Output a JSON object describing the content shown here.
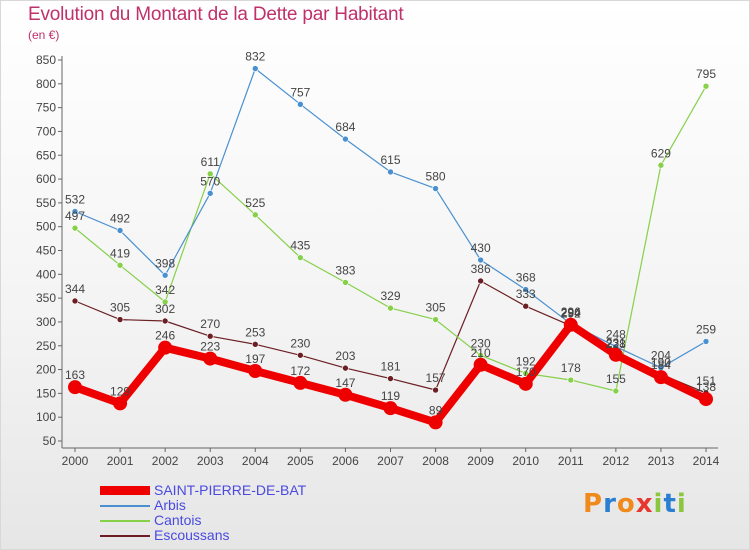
{
  "header": {
    "title": "Evolution du Montant de la Dette par Habitant",
    "unit": "(en €)"
  },
  "logo": {
    "letters": [
      "P",
      "r",
      "o",
      "x",
      "i",
      "t",
      "i"
    ],
    "colors": [
      "#f08a1c",
      "#2a7fd2",
      "#f08a1c",
      "#e7372f",
      "#8cc63f",
      "#2a7fd2",
      "#8cc63f"
    ]
  },
  "chart_data": {
    "type": "line",
    "title": "Evolution du Montant de la Dette par Habitant",
    "ylabel": "(en €)",
    "xlabel": "",
    "x": [
      "2000",
      "2001",
      "2002",
      "2003",
      "2004",
      "2005",
      "2006",
      "2007",
      "2008",
      "2009",
      "2010",
      "2011",
      "2012",
      "2013",
      "2014"
    ],
    "ylim": [
      50,
      850
    ],
    "yticks": [
      50,
      100,
      150,
      200,
      250,
      300,
      350,
      400,
      450,
      500,
      550,
      600,
      650,
      700,
      750,
      800,
      850
    ],
    "grid": false,
    "legend_position": "bottom-left",
    "series": [
      {
        "name": "Escoussans",
        "color": "#6b1f24",
        "width": 1.2,
        "marker": 3,
        "values": [
          344,
          305,
          302,
          270,
          253,
          230,
          203,
          181,
          157,
          386,
          333,
          292,
          228,
          190,
          151
        ]
      },
      {
        "name": "Cantois",
        "color": "#86d04a",
        "width": 1.2,
        "marker": 3,
        "values": [
          497,
          419,
          342,
          611,
          525,
          435,
          383,
          329,
          305,
          230,
          192,
          178,
          155,
          629,
          795
        ]
      },
      {
        "name": "Arbis",
        "color": "#4a90d0",
        "width": 1.2,
        "marker": 3,
        "values": [
          532,
          492,
          398,
          570,
          832,
          757,
          684,
          615,
          580,
          430,
          368,
          296,
          248,
          204,
          259
        ]
      },
      {
        "name": "SAINT-PIERRE-DE-BAT",
        "color": "#ee0000",
        "width": 8,
        "marker": 7,
        "values": [
          163,
          129,
          246,
          223,
          197,
          172,
          147,
          119,
          89,
          210,
          170,
          294,
          231,
          184,
          138
        ]
      }
    ]
  }
}
